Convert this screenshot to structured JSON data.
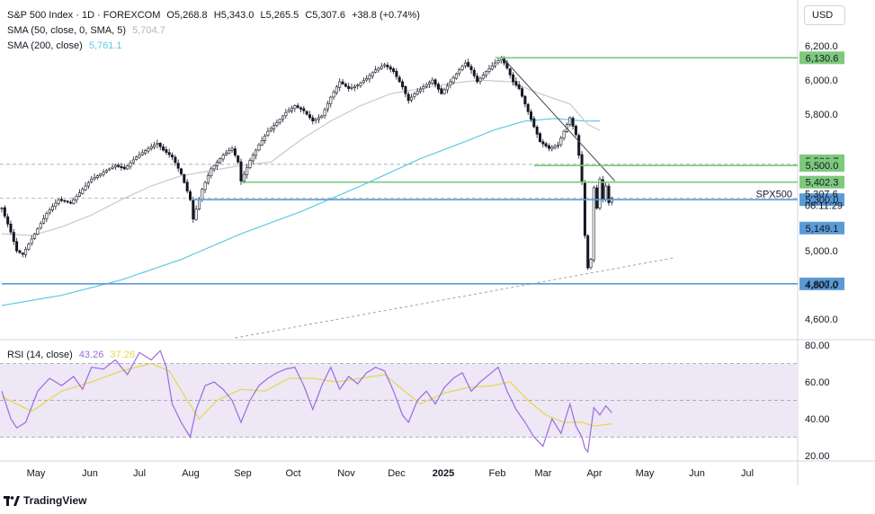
{
  "header": {
    "symbol_line": "S&P 500 Index · 1D · FOREXCOM",
    "ohlc": [
      "O5,268.8",
      "H5,343.0",
      "L5,265.5",
      "C5,307.6",
      "+38.8 (+0.74%)"
    ],
    "sma50_label": "SMA (50, close, 0, SMA, 5)",
    "sma50_value": "5,704.7",
    "sma200_label": "SMA (200, close)",
    "sma200_value": "5,761.1",
    "currency_button": "USD"
  },
  "rsi_legend": {
    "label": "RSI (14, close)",
    "value": "43.26",
    "ma_value": "37.26"
  },
  "branding": {
    "name": "TradingView"
  },
  "colors": {
    "level_green": "#7dc97d",
    "level_blue": "#5b9bd5",
    "sma50": "#c9c9c9",
    "sma200": "#5ec9e6",
    "rsi": "#9c6ade",
    "rsi_ma": "#e6d74a",
    "rsi_band": "#ede7f6",
    "candle": "#131722"
  },
  "chart_data": [
    {
      "type": "line",
      "title": "S&P 500 Index · 1D · FOREXCOM",
      "x_ticks": [
        "May",
        "Jun",
        "Jul",
        "Aug",
        "Sep",
        "Oct",
        "Nov",
        "Dec",
        "2025",
        "Feb",
        "Mar",
        "Apr",
        "May",
        "Jun",
        "Jul"
      ],
      "y_ticks": [
        "6,200.0",
        "6,000.0",
        "5,800.0",
        "5,600.0",
        "5,400.0",
        "5,200.0",
        "5,000.0",
        "4,800.0",
        "4,600.0"
      ],
      "y_tick_values": [
        6200,
        6000,
        5800,
        5600,
        5400,
        5200,
        5000,
        4800,
        4600
      ],
      "ylim": [
        4480,
        6290
      ],
      "price_series_anchors": [
        [
          0,
          5250
        ],
        [
          3,
          5110
        ],
        [
          5,
          5000
        ],
        [
          7,
          4980
        ],
        [
          11,
          5100
        ],
        [
          15,
          5220
        ],
        [
          19,
          5300
        ],
        [
          23,
          5280
        ],
        [
          26,
          5340
        ],
        [
          30,
          5420
        ],
        [
          34,
          5460
        ],
        [
          38,
          5500
        ],
        [
          41,
          5480
        ],
        [
          45,
          5550
        ],
        [
          49,
          5600
        ],
        [
          52,
          5630
        ],
        [
          54,
          5590
        ],
        [
          57,
          5550
        ],
        [
          60,
          5450
        ],
        [
          63,
          5300
        ],
        [
          64,
          5186
        ],
        [
          67,
          5360
        ],
        [
          70,
          5480
        ],
        [
          74,
          5560
        ],
        [
          77,
          5600
        ],
        [
          79,
          5520
        ],
        [
          80,
          5408
        ],
        [
          83,
          5530
        ],
        [
          86,
          5620
        ],
        [
          89,
          5700
        ],
        [
          92,
          5750
        ],
        [
          95,
          5810
        ],
        [
          98,
          5850
        ],
        [
          101,
          5820
        ],
        [
          104,
          5760
        ],
        [
          107,
          5790
        ],
        [
          110,
          5900
        ],
        [
          113,
          5990
        ],
        [
          116,
          5950
        ],
        [
          119,
          5970
        ],
        [
          122,
          6010
        ],
        [
          125,
          6060
        ],
        [
          128,
          6090
        ],
        [
          131,
          6050
        ],
        [
          134,
          5960
        ],
        [
          136,
          5880
        ],
        [
          138,
          5920
        ],
        [
          141,
          5960
        ],
        [
          144,
          6000
        ],
        [
          147,
          5920
        ],
        [
          150,
          5990
        ],
        [
          153,
          6060
        ],
        [
          155,
          6100
        ],
        [
          157,
          6060
        ],
        [
          159,
          5990
        ],
        [
          162,
          6050
        ],
        [
          165,
          6100
        ],
        [
          167,
          6130
        ],
        [
          169,
          6070
        ],
        [
          171,
          5990
        ],
        [
          173,
          5950
        ],
        [
          175,
          5860
        ],
        [
          177,
          5770
        ],
        [
          180,
          5640
        ],
        [
          183,
          5600
        ],
        [
          186,
          5620
        ],
        [
          188,
          5700
        ],
        [
          190,
          5780
        ],
        [
          192,
          5680
        ],
        [
          193,
          5560
        ],
        [
          194,
          5400
        ],
        [
          195,
          5090
        ],
        [
          196,
          4900
        ],
        [
          197,
          4950
        ],
        [
          198,
          5370
        ],
        [
          199,
          5250
        ],
        [
          200,
          5420
        ],
        [
          201,
          5300
        ],
        [
          202,
          5380
        ],
        [
          203,
          5282
        ],
        [
          204,
          5308
        ]
      ],
      "sma50_anchors": [
        [
          0,
          5100
        ],
        [
          10,
          5090
        ],
        [
          20,
          5140
        ],
        [
          30,
          5210
        ],
        [
          40,
          5300
        ],
        [
          50,
          5380
        ],
        [
          60,
          5440
        ],
        [
          70,
          5470
        ],
        [
          80,
          5500
        ],
        [
          90,
          5520
        ],
        [
          100,
          5650
        ],
        [
          110,
          5760
        ],
        [
          120,
          5850
        ],
        [
          130,
          5920
        ],
        [
          140,
          5950
        ],
        [
          150,
          5980
        ],
        [
          160,
          6000
        ],
        [
          170,
          5990
        ],
        [
          180,
          5920
        ],
        [
          190,
          5860
        ],
        [
          196,
          5740
        ],
        [
          200,
          5705
        ]
      ],
      "sma200_anchors": [
        [
          0,
          4680
        ],
        [
          20,
          4740
        ],
        [
          40,
          4830
        ],
        [
          60,
          4950
        ],
        [
          80,
          5100
        ],
        [
          100,
          5230
        ],
        [
          120,
          5380
        ],
        [
          140,
          5540
        ],
        [
          155,
          5640
        ],
        [
          165,
          5710
        ],
        [
          175,
          5760
        ],
        [
          185,
          5775
        ],
        [
          195,
          5760
        ],
        [
          200,
          5761
        ]
      ],
      "horizontal_levels": [
        {
          "value": 6130.6,
          "label": "6,130.6",
          "color": "green",
          "from": 165
        },
        {
          "value": 5506.7,
          "label": "5,506.7",
          "color": "green",
          "from": 999
        },
        {
          "value": 5500.0,
          "label": "5,500.0",
          "color": "green",
          "from": 178
        },
        {
          "value": 5402.3,
          "label": "5,402.3",
          "color": "green",
          "from": 80
        },
        {
          "value": 5300.0,
          "label": "5,300.0",
          "color": "blue",
          "from": 64
        },
        {
          "value": 5149.1,
          "label": "5,149.1",
          "color": "blue",
          "from": 999
        },
        {
          "value": 4807.0,
          "label": "4,807.0",
          "color": "blue",
          "from": 0
        }
      ],
      "dashed_levels": [
        5506.7,
        5307.6
      ],
      "trendline": {
        "from": [
          167,
          6140
        ],
        "to": [
          205,
          5410
        ]
      },
      "support_trendline": {
        "from": [
          78,
          4490
        ],
        "to": [
          225,
          4960
        ]
      },
      "last_price": {
        "symbol": "SPX500",
        "value": "5,307.6",
        "countdown": "08:11:29"
      }
    },
    {
      "type": "line",
      "title": "RSI (14, close)",
      "y_ticks": [
        "80.00",
        "60.00",
        "40.00",
        "20.00"
      ],
      "y_tick_values": [
        80,
        60,
        40,
        20
      ],
      "ylim": [
        17,
        83
      ],
      "band": [
        30,
        70
      ],
      "midline": 50,
      "rsi_anchors": [
        [
          0,
          55
        ],
        [
          3,
          40
        ],
        [
          5,
          35
        ],
        [
          8,
          38
        ],
        [
          12,
          55
        ],
        [
          16,
          62
        ],
        [
          20,
          58
        ],
        [
          24,
          63
        ],
        [
          27,
          56
        ],
        [
          30,
          68
        ],
        [
          34,
          67
        ],
        [
          38,
          72
        ],
        [
          42,
          64
        ],
        [
          46,
          76
        ],
        [
          50,
          72
        ],
        [
          53,
          77
        ],
        [
          55,
          68
        ],
        [
          57,
          48
        ],
        [
          60,
          38
        ],
        [
          63,
          30
        ],
        [
          65,
          45
        ],
        [
          68,
          58
        ],
        [
          71,
          60
        ],
        [
          74,
          56
        ],
        [
          77,
          50
        ],
        [
          80,
          38
        ],
        [
          83,
          50
        ],
        [
          86,
          58
        ],
        [
          89,
          62
        ],
        [
          92,
          65
        ],
        [
          95,
          67
        ],
        [
          98,
          68
        ],
        [
          101,
          58
        ],
        [
          104,
          45
        ],
        [
          107,
          58
        ],
        [
          110,
          68
        ],
        [
          113,
          56
        ],
        [
          116,
          63
        ],
        [
          119,
          59
        ],
        [
          122,
          65
        ],
        [
          125,
          68
        ],
        [
          128,
          66
        ],
        [
          131,
          55
        ],
        [
          134,
          42
        ],
        [
          136,
          38
        ],
        [
          139,
          50
        ],
        [
          142,
          55
        ],
        [
          145,
          48
        ],
        [
          148,
          57
        ],
        [
          151,
          62
        ],
        [
          154,
          65
        ],
        [
          157,
          55
        ],
        [
          160,
          60
        ],
        [
          163,
          64
        ],
        [
          166,
          68
        ],
        [
          169,
          55
        ],
        [
          172,
          45
        ],
        [
          175,
          38
        ],
        [
          178,
          30
        ],
        [
          181,
          25
        ],
        [
          184,
          40
        ],
        [
          187,
          32
        ],
        [
          190,
          48
        ],
        [
          192,
          36
        ],
        [
          194,
          30
        ],
        [
          195,
          24
        ],
        [
          196,
          22
        ],
        [
          197,
          34
        ],
        [
          198,
          46
        ],
        [
          200,
          42
        ],
        [
          202,
          47
        ],
        [
          204,
          43.26
        ]
      ],
      "rsi_ma_anchors": [
        [
          0,
          52
        ],
        [
          10,
          44
        ],
        [
          20,
          55
        ],
        [
          30,
          60
        ],
        [
          40,
          66
        ],
        [
          50,
          70
        ],
        [
          56,
          66
        ],
        [
          62,
          50
        ],
        [
          66,
          40
        ],
        [
          72,
          50
        ],
        [
          80,
          56
        ],
        [
          88,
          55
        ],
        [
          96,
          62
        ],
        [
          104,
          62
        ],
        [
          112,
          60
        ],
        [
          120,
          62
        ],
        [
          128,
          64
        ],
        [
          134,
          56
        ],
        [
          140,
          48
        ],
        [
          148,
          54
        ],
        [
          156,
          57
        ],
        [
          164,
          58
        ],
        [
          170,
          60
        ],
        [
          176,
          50
        ],
        [
          182,
          42
        ],
        [
          188,
          38
        ],
        [
          194,
          38
        ],
        [
          198,
          36
        ],
        [
          204,
          37.26
        ]
      ]
    }
  ]
}
